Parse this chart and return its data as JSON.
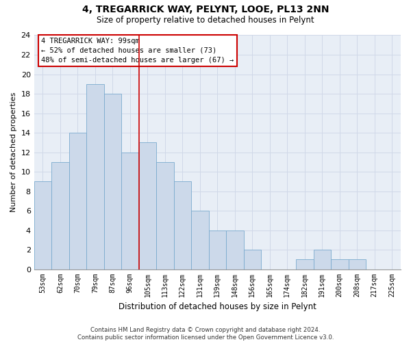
{
  "title": "4, TREGARRICK WAY, PELYNT, LOOE, PL13 2NN",
  "subtitle": "Size of property relative to detached houses in Pelynt",
  "xlabel": "Distribution of detached houses by size in Pelynt",
  "ylabel": "Number of detached properties",
  "bar_color": "#ccd9ea",
  "bar_edge_color": "#7aaace",
  "grid_color": "#d0d8e8",
  "bg_color": "#e8eef6",
  "categories": [
    "53sqm",
    "62sqm",
    "70sqm",
    "79sqm",
    "87sqm",
    "96sqm",
    "105sqm",
    "113sqm",
    "122sqm",
    "131sqm",
    "139sqm",
    "148sqm",
    "156sqm",
    "165sqm",
    "174sqm",
    "182sqm",
    "191sqm",
    "200sqm",
    "208sqm",
    "217sqm",
    "225sqm"
  ],
  "values": [
    9,
    11,
    14,
    19,
    18,
    12,
    13,
    11,
    9,
    6,
    4,
    4,
    2,
    0,
    0,
    1,
    2,
    1,
    1,
    0,
    0
  ],
  "ylim": [
    0,
    24
  ],
  "yticks": [
    0,
    2,
    4,
    6,
    8,
    10,
    12,
    14,
    16,
    18,
    20,
    22,
    24
  ],
  "property_line_x": 5.5,
  "annotation_line1": "4 TREGARRICK WAY: 99sqm",
  "annotation_line2": "← 52% of detached houses are smaller (73)",
  "annotation_line3": "48% of semi-detached houses are larger (67) →",
  "annotation_box_color": "#ffffff",
  "annotation_box_edge": "#cc0000",
  "line_color": "#cc0000",
  "footnote": "Contains HM Land Registry data © Crown copyright and database right 2024.\nContains public sector information licensed under the Open Government Licence v3.0."
}
